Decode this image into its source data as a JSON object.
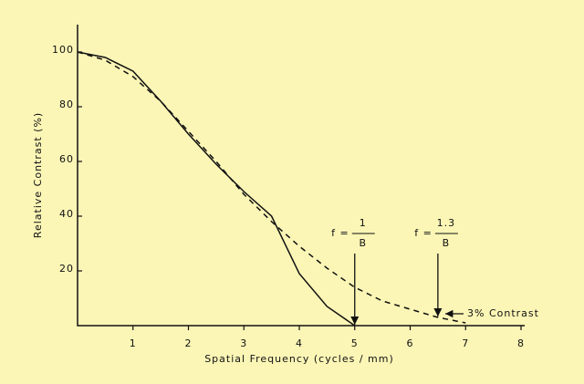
{
  "chart_data": {
    "type": "line",
    "x_label": "Spatial  Frequency  (cycles / mm)",
    "y_label": "Relative  Contrast (%)",
    "xlim": [
      0,
      8
    ],
    "ylim": [
      0,
      110
    ],
    "xticks": [
      1,
      2,
      3,
      4,
      5,
      6,
      7,
      8
    ],
    "yticks": [
      20,
      40,
      60,
      80,
      100
    ],
    "series": [
      {
        "color": "#111111",
        "dash": false,
        "x": [
          0,
          0.5,
          1,
          1.5,
          2,
          2.5,
          3,
          3.5,
          4,
          4.5,
          5
        ],
        "values": [
          100,
          98,
          93,
          82,
          70,
          59,
          49,
          40,
          19,
          7,
          0
        ]
      },
      {
        "color": "#111111",
        "dash": true,
        "x": [
          0,
          0.5,
          1,
          1.5,
          2,
          2.5,
          3,
          3.5,
          4,
          4.5,
          5,
          5.5,
          6,
          6.5,
          7
        ],
        "values": [
          100,
          97,
          91,
          82,
          71,
          60,
          48,
          38,
          29,
          21,
          14,
          9,
          6,
          3,
          1
        ]
      }
    ],
    "annotations": [
      {
        "prefix": "f =",
        "numerator": "1",
        "denominator": "B",
        "x": 5,
        "y": 0
      },
      {
        "prefix": "f =",
        "numerator": "1.3",
        "denominator": "B",
        "x": 6.5,
        "y": 3
      }
    ],
    "note": "3% Contrast"
  }
}
